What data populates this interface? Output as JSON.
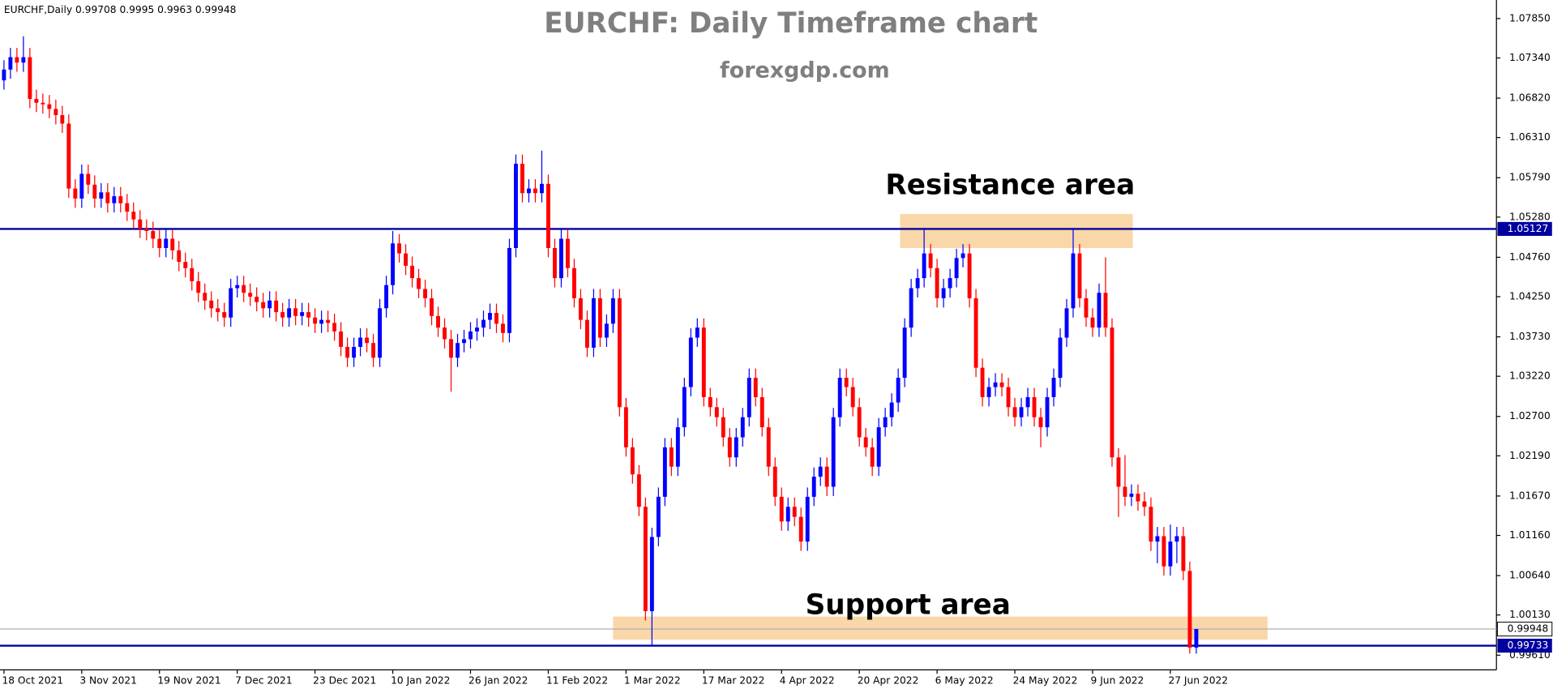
{
  "chart_data": {
    "type": "candlestick",
    "symbol": "EURCHF,Daily",
    "title": "EURCHF: Daily Timeframe chart",
    "subtitle": "forexgdp.com",
    "bull_color": "#0000ff",
    "bear_color": "#ff0000",
    "categories": [
      "18 Oct 2021",
      null,
      null,
      null,
      null,
      null,
      null,
      null,
      null,
      null,
      null,
      null,
      "3 Nov 2021",
      null,
      null,
      null,
      null,
      null,
      null,
      null,
      null,
      null,
      null,
      null,
      "19 Nov 2021",
      null,
      null,
      null,
      null,
      null,
      null,
      null,
      null,
      null,
      null,
      null,
      "7 Dec 2021",
      null,
      null,
      null,
      null,
      null,
      null,
      null,
      null,
      null,
      null,
      null,
      "23 Dec 2021",
      null,
      null,
      null,
      null,
      null,
      null,
      null,
      null,
      null,
      null,
      null,
      "10 Jan 2022",
      null,
      null,
      null,
      null,
      null,
      null,
      null,
      null,
      null,
      null,
      null,
      "26 Jan 2022",
      null,
      null,
      null,
      null,
      null,
      null,
      null,
      null,
      null,
      null,
      null,
      "11 Feb 2022",
      null,
      null,
      null,
      null,
      null,
      null,
      null,
      null,
      null,
      null,
      null,
      "1 Mar 2022",
      null,
      null,
      null,
      null,
      null,
      null,
      null,
      null,
      null,
      null,
      null,
      "17 Mar 2022",
      null,
      null,
      null,
      null,
      null,
      null,
      null,
      null,
      null,
      null,
      null,
      "4 Apr 2022",
      null,
      null,
      null,
      null,
      null,
      null,
      null,
      null,
      null,
      null,
      null,
      "20 Apr 2022",
      null,
      null,
      null,
      null,
      null,
      null,
      null,
      null,
      null,
      null,
      null,
      "6 May 2022",
      null,
      null,
      null,
      null,
      null,
      null,
      null,
      null,
      null,
      null,
      null,
      "24 May 2022",
      null,
      null,
      null,
      null,
      null,
      null,
      null,
      null,
      null,
      null,
      null,
      "9 Jun 2022",
      null,
      null,
      null,
      null,
      null,
      null,
      null,
      null,
      null,
      null,
      null,
      "27 Jun 2022",
      null,
      null,
      null,
      null
    ],
    "open": [
      1.0705,
      1.0719,
      1.0735,
      1.0728,
      1.0735,
      1.0681,
      1.0676,
      1.0674,
      1.0668,
      1.066,
      1.0649,
      1.0565,
      1.0552,
      1.0584,
      1.057,
      1.0552,
      1.056,
      1.0546,
      1.0555,
      1.0546,
      1.0535,
      1.0525,
      1.0513,
      1.051,
      1.05,
      1.0488,
      1.05,
      1.0485,
      1.047,
      1.0462,
      1.0445,
      1.043,
      1.042,
      1.041,
      1.0405,
      1.0398,
      1.0436,
      1.044,
      1.043,
      1.0425,
      1.0418,
      1.041,
      1.042,
      1.0405,
      1.0398,
      1.041,
      1.04,
      1.0405,
      1.0398,
      1.039,
      1.0395,
      1.0391,
      1.038,
      1.036,
      1.0346,
      1.036,
      1.0372,
      1.0365,
      1.0346,
      1.041,
      1.044,
      1.0494,
      1.0481,
      1.0465,
      1.0449,
      1.0435,
      1.0423,
      1.04,
      1.0385,
      1.037,
      1.0346,
      1.0365,
      1.037,
      1.038,
      1.0385,
      1.0395,
      1.0404,
      1.039,
      1.0378,
      1.0488,
      1.0597,
      1.0559,
      1.0565,
      1.0559,
      1.0571,
      1.0488,
      1.0449,
      1.05,
      1.0462,
      1.0423,
      1.0395,
      1.0359,
      1.0423,
      1.0372,
      1.039,
      1.0423,
      1.0282,
      1.023,
      1.0195,
      1.0153,
      1.0018,
      1.0114,
      1.0166,
      1.023,
      1.0205,
      1.0256,
      1.0308,
      1.0372,
      1.0385,
      1.0295,
      1.0282,
      1.0269,
      1.0243,
      1.0217,
      1.0243,
      1.0269,
      1.032,
      1.0295,
      1.0256,
      1.0205,
      1.0166,
      1.0134,
      1.0153,
      1.014,
      1.0108,
      1.0166,
      1.0192,
      1.0205,
      1.0179,
      1.0269,
      1.032,
      1.0308,
      1.0282,
      1.0243,
      1.023,
      1.0205,
      1.0256,
      1.0269,
      1.0288,
      1.032,
      1.0385,
      1.0436,
      1.0449,
      1.0481,
      1.0462,
      1.0423,
      1.0436,
      1.0449,
      1.0475,
      1.0481,
      1.0423,
      1.0333,
      1.0295,
      1.0308,
      1.0314,
      1.0308,
      1.0282,
      1.0269,
      1.0282,
      1.0295,
      1.0269,
      1.0256,
      1.0295,
      1.032,
      1.0372,
      1.041,
      1.0481,
      1.0423,
      1.0398,
      1.0385,
      1.043,
      1.0385,
      1.0217,
      1.0179,
      1.0166,
      1.017,
      1.016,
      1.0153,
      1.0108,
      1.0115,
      1.0076,
      1.0108,
      1.0115,
      1.007,
      0.99708
    ],
    "high": [
      1.0731,
      1.0747,
      1.0747,
      1.0762,
      1.0747,
      1.0693,
      1.0688,
      1.0686,
      1.068,
      1.0672,
      1.0661,
      1.0577,
      1.0596,
      1.0596,
      1.0582,
      1.0572,
      1.0572,
      1.0567,
      1.0567,
      1.0558,
      1.0547,
      1.0537,
      1.0525,
      1.0522,
      1.0512,
      1.0512,
      1.0512,
      1.0497,
      1.0482,
      1.0474,
      1.0457,
      1.0442,
      1.0432,
      1.0422,
      1.0417,
      1.0448,
      1.0452,
      1.0452,
      1.0442,
      1.0437,
      1.043,
      1.0432,
      1.0432,
      1.0417,
      1.0422,
      1.0422,
      1.0417,
      1.0417,
      1.041,
      1.0407,
      1.0407,
      1.0403,
      1.0392,
      1.0372,
      1.0372,
      1.0384,
      1.0384,
      1.0377,
      1.0422,
      1.0452,
      1.051,
      1.0506,
      1.0493,
      1.0477,
      1.0461,
      1.0447,
      1.0435,
      1.0412,
      1.0397,
      1.0382,
      1.0377,
      1.0382,
      1.0392,
      1.0397,
      1.0407,
      1.0416,
      1.0416,
      1.0402,
      1.05,
      1.0609,
      1.0609,
      1.0577,
      1.0577,
      1.0614,
      1.0583,
      1.05,
      1.0512,
      1.0512,
      1.0474,
      1.0435,
      1.0407,
      1.0435,
      1.0435,
      1.0402,
      1.0435,
      1.0435,
      1.0294,
      1.0242,
      1.0207,
      1.0165,
      1.0126,
      1.0178,
      1.0242,
      1.0242,
      1.0268,
      1.032,
      1.0384,
      1.0397,
      1.0397,
      1.0307,
      1.0294,
      1.0281,
      1.0255,
      1.0255,
      1.0281,
      1.0332,
      1.0332,
      1.0307,
      1.0268,
      1.0217,
      1.0178,
      1.0165,
      1.0165,
      1.0152,
      1.0178,
      1.0204,
      1.0217,
      1.0217,
      1.0281,
      1.0332,
      1.0332,
      1.032,
      1.0294,
      1.0255,
      1.0242,
      1.0268,
      1.0281,
      1.03,
      1.0332,
      1.0397,
      1.0448,
      1.0461,
      1.0514,
      1.0493,
      1.0474,
      1.0448,
      1.0461,
      1.0487,
      1.0493,
      1.0493,
      1.0435,
      1.0345,
      1.032,
      1.0326,
      1.0326,
      1.032,
      1.0294,
      1.0294,
      1.0307,
      1.0307,
      1.0281,
      1.0307,
      1.0332,
      1.0384,
      1.0422,
      1.0514,
      1.0493,
      1.0435,
      1.041,
      1.0442,
      1.0476,
      1.0397,
      1.0229,
      1.022,
      1.0182,
      1.0182,
      1.0172,
      1.0165,
      1.0127,
      1.0127,
      1.013,
      1.0127,
      1.0127,
      1.0082,
      0.9995
    ],
    "low": [
      1.0693,
      1.0707,
      1.0716,
      1.0716,
      1.0669,
      1.0664,
      1.0662,
      1.0656,
      1.0648,
      1.0637,
      1.0553,
      1.054,
      1.054,
      1.0558,
      1.054,
      1.054,
      1.0534,
      1.0534,
      1.0534,
      1.0523,
      1.0513,
      1.0501,
      1.0498,
      1.0488,
      1.0476,
      1.0476,
      1.0473,
      1.0458,
      1.045,
      1.0433,
      1.0418,
      1.0408,
      1.0398,
      1.0393,
      1.0386,
      1.0386,
      1.0424,
      1.0418,
      1.0413,
      1.0406,
      1.0398,
      1.0398,
      1.0393,
      1.0386,
      1.0386,
      1.0388,
      1.0388,
      1.0386,
      1.0378,
      1.0378,
      1.0379,
      1.0368,
      1.0348,
      1.0334,
      1.0334,
      1.0348,
      1.0353,
      1.0334,
      1.0334,
      1.0398,
      1.0428,
      1.0469,
      1.0453,
      1.0437,
      1.0423,
      1.0411,
      1.0388,
      1.0373,
      1.0358,
      1.0302,
      1.0334,
      1.0353,
      1.0358,
      1.0368,
      1.0373,
      1.0383,
      1.0378,
      1.0366,
      1.0366,
      1.0476,
      1.0547,
      1.0547,
      1.0547,
      1.0547,
      1.0476,
      1.0437,
      1.0437,
      1.045,
      1.0411,
      1.0383,
      1.0347,
      1.0347,
      1.036,
      1.036,
      1.0378,
      1.027,
      1.0218,
      1.0183,
      1.0141,
      1.0006,
      0.9973,
      1.0102,
      1.0154,
      1.0193,
      1.0193,
      1.0244,
      1.0296,
      1.036,
      1.0283,
      1.027,
      1.0257,
      1.0231,
      1.0205,
      1.0205,
      1.0231,
      1.0257,
      1.0283,
      1.0244,
      1.0193,
      1.0154,
      1.0122,
      1.0122,
      1.0128,
      1.0096,
      1.0096,
      1.0154,
      1.018,
      1.0167,
      1.0167,
      1.0257,
      1.0296,
      1.027,
      1.0231,
      1.0218,
      1.0193,
      1.0193,
      1.0244,
      1.0257,
      1.0276,
      1.0308,
      1.0373,
      1.0424,
      1.0437,
      1.045,
      1.0411,
      1.0411,
      1.0424,
      1.0437,
      1.0463,
      1.0411,
      1.0321,
      1.0283,
      1.0283,
      1.0296,
      1.0296,
      1.027,
      1.0257,
      1.0257,
      1.027,
      1.0257,
      1.023,
      1.0244,
      1.0283,
      1.0308,
      1.036,
      1.0398,
      1.0411,
      1.0386,
      1.0373,
      1.0373,
      1.0373,
      1.0205,
      1.014,
      1.0154,
      1.0154,
      1.0148,
      1.0141,
      1.0096,
      1.008,
      1.0064,
      1.0064,
      1.008,
      1.0058,
      0.9963,
      0.9963
    ],
    "close": [
      1.0719,
      1.0735,
      1.0728,
      1.0735,
      1.0681,
      1.0676,
      1.0674,
      1.0668,
      1.066,
      1.0649,
      1.0565,
      1.0552,
      1.0584,
      1.057,
      1.0552,
      1.056,
      1.0546,
      1.0555,
      1.0546,
      1.0535,
      1.0525,
      1.0513,
      1.051,
      1.05,
      1.0488,
      1.05,
      1.0485,
      1.047,
      1.0462,
      1.0445,
      1.043,
      1.042,
      1.041,
      1.0405,
      1.0398,
      1.0436,
      1.044,
      1.043,
      1.0425,
      1.0418,
      1.041,
      1.042,
      1.0405,
      1.0398,
      1.041,
      1.04,
      1.0405,
      1.0398,
      1.039,
      1.0395,
      1.0391,
      1.038,
      1.036,
      1.0346,
      1.036,
      1.0372,
      1.0365,
      1.0346,
      1.041,
      1.044,
      1.0494,
      1.0481,
      1.0465,
      1.0449,
      1.0435,
      1.0423,
      1.04,
      1.0385,
      1.037,
      1.0346,
      1.0365,
      1.037,
      1.038,
      1.0385,
      1.0395,
      1.0404,
      1.039,
      1.0378,
      1.0488,
      1.0597,
      1.0559,
      1.0565,
      1.0559,
      1.0571,
      1.0488,
      1.0449,
      1.05,
      1.0462,
      1.0423,
      1.0395,
      1.0359,
      1.0423,
      1.0372,
      1.039,
      1.0423,
      1.0282,
      1.023,
      1.0195,
      1.0153,
      1.0018,
      1.0114,
      1.0166,
      1.023,
      1.0205,
      1.0256,
      1.0308,
      1.0372,
      1.0385,
      1.0295,
      1.0282,
      1.0269,
      1.0243,
      1.0217,
      1.0243,
      1.0269,
      1.032,
      1.0295,
      1.0256,
      1.0205,
      1.0166,
      1.0134,
      1.0153,
      1.014,
      1.0108,
      1.0166,
      1.0192,
      1.0205,
      1.0179,
      1.0269,
      1.032,
      1.0308,
      1.0282,
      1.0243,
      1.023,
      1.0205,
      1.0256,
      1.0269,
      1.0288,
      1.032,
      1.0385,
      1.0436,
      1.0449,
      1.0481,
      1.0462,
      1.0423,
      1.0436,
      1.0449,
      1.0475,
      1.0481,
      1.0423,
      1.0333,
      1.0295,
      1.0308,
      1.0314,
      1.0308,
      1.0282,
      1.0269,
      1.0282,
      1.0295,
      1.0269,
      1.0256,
      1.0295,
      1.032,
      1.0372,
      1.041,
      1.0481,
      1.0423,
      1.0398,
      1.0385,
      1.043,
      1.0385,
      1.0217,
      1.0179,
      1.0166,
      1.017,
      1.016,
      1.0153,
      1.0108,
      1.0115,
      1.0076,
      1.0108,
      1.0115,
      1.007,
      0.99708,
      0.99948
    ],
    "ylim": [
      0.9942,
      1.0809
    ],
    "yticks": [
      {
        "value": 1.0785,
        "label": "1.07850"
      },
      {
        "value": 1.0734,
        "label": "1.07340"
      },
      {
        "value": 1.0682,
        "label": "1.06820"
      },
      {
        "value": 1.0631,
        "label": "1.06310"
      },
      {
        "value": 1.0579,
        "label": "1.05790"
      },
      {
        "value": 1.0528,
        "label": "1.05280"
      },
      {
        "value": 1.0476,
        "label": "1.04760"
      },
      {
        "value": 1.0425,
        "label": "1.04250"
      },
      {
        "value": 1.0373,
        "label": "1.03730"
      },
      {
        "value": 1.0322,
        "label": "1.03220"
      },
      {
        "value": 1.027,
        "label": "1.02700"
      },
      {
        "value": 1.0219,
        "label": "1.02190"
      },
      {
        "value": 1.0167,
        "label": "1.01670"
      },
      {
        "value": 1.0116,
        "label": "1.01160"
      },
      {
        "value": 1.0064,
        "label": "1.00640"
      },
      {
        "value": 1.0013,
        "label": "1.00130"
      },
      {
        "value": 0.9961,
        "label": "0.99610"
      }
    ],
    "hlines": [
      {
        "value": 1.05127,
        "color": "#0000a0"
      },
      {
        "value": 0.99733,
        "color": "#0000a0"
      }
    ],
    "zones": [
      {
        "label": "Resistance area",
        "range": [
          1.0488,
          1.0532
        ],
        "color": "#fad7a8"
      },
      {
        "label": "Support area",
        "range": [
          0.9981,
          1.0011
        ],
        "color": "#fad7a8"
      }
    ]
  }
}
